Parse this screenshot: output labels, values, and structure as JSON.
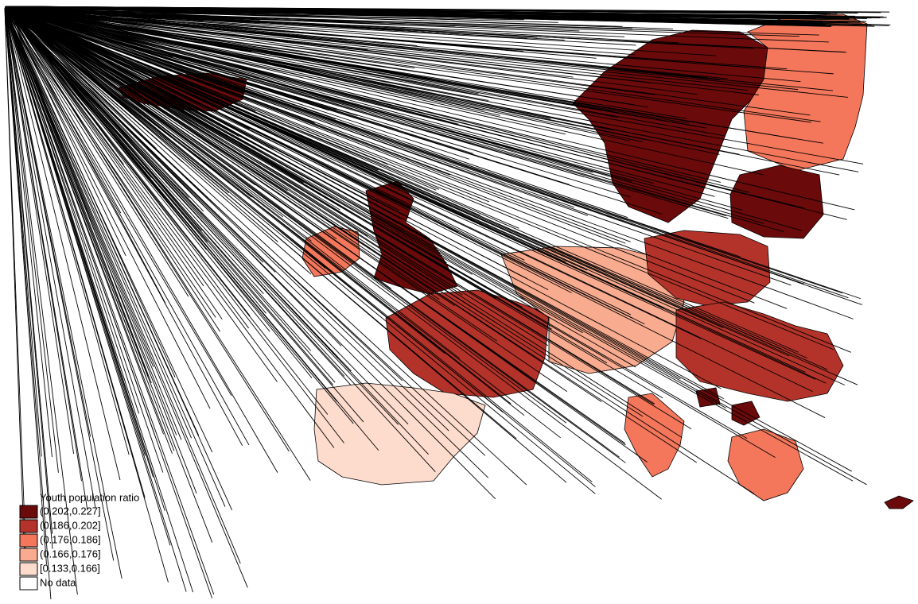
{
  "legend": {
    "title": "Youth population ratio",
    "items": [
      {
        "label": "(0.202,0.227]",
        "color": "#6b0a0a"
      },
      {
        "label": "(0.186,0.202]",
        "color": "#b3332a"
      },
      {
        "label": "(0.176,0.186]",
        "color": "#f4775c"
      },
      {
        "label": "(0.166,0.176]",
        "color": "#f9ab90"
      },
      {
        "label": "[0.133,0.166]",
        "color": "#fddccd"
      },
      {
        "label": "No data",
        "color": "#ffffff"
      }
    ]
  }
}
